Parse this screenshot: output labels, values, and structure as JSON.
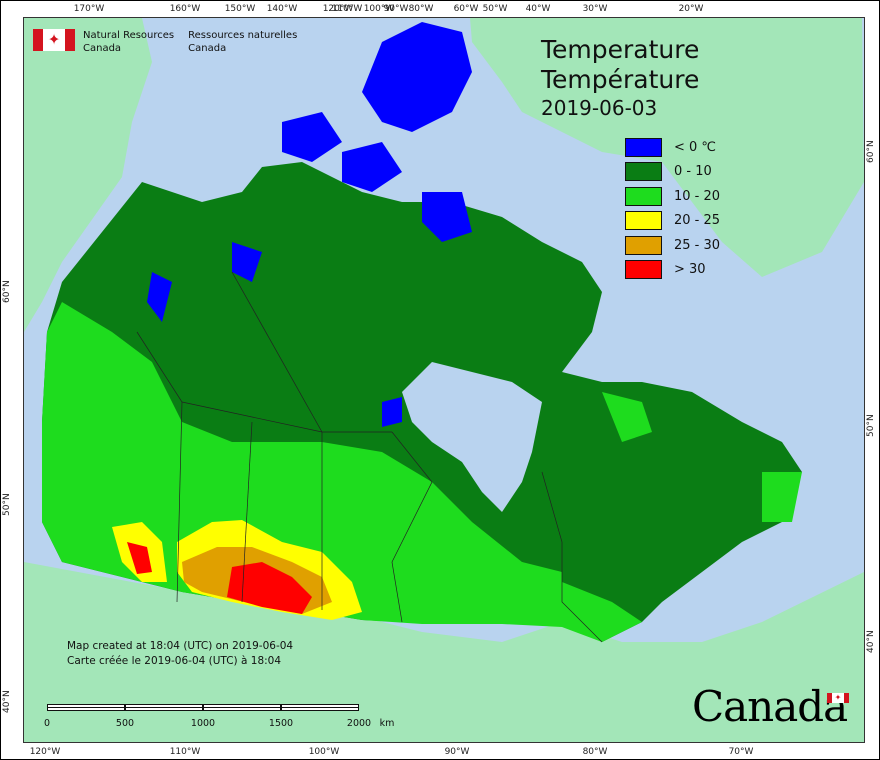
{
  "map": {
    "agency": {
      "en_line1": "Natural Resources",
      "en_line2": "Canada",
      "fr_line1": "Ressources naturelles",
      "fr_line2": "Canada"
    },
    "title_en": "Temperature",
    "title_fr": "Température",
    "date": "2019-06-03",
    "legend": [
      {
        "label": "< 0 ℃",
        "color": "#0000ff"
      },
      {
        "label": "0 - 10",
        "color": "#0a7d14"
      },
      {
        "label": "10 - 20",
        "color": "#1edc1e"
      },
      {
        "label": "20 - 25",
        "color": "#ffff00"
      },
      {
        "label": "25 - 30",
        "color": "#e0a000"
      },
      {
        "label": "> 30",
        "color": "#ff0000"
      }
    ],
    "credit_en": "Map created at 18:04 (UTC) on 2019-06-04",
    "credit_fr": "Carte créée le 2019-06-04 (UTC) à 18:04",
    "scale": {
      "labels": [
        "0",
        "500",
        "1000",
        "1500",
        "2000"
      ],
      "unit": "km"
    },
    "wordmark": "Canada",
    "lon_top": [
      "170°W",
      "160°W",
      "150°W",
      "140°W",
      "120°W",
      "110°W",
      "100°W",
      "90°W",
      "80°W",
      "60°W",
      "50°W",
      "40°W",
      "30°W",
      "20°W"
    ],
    "lon_bottom": [
      "120°W",
      "110°W",
      "100°W",
      "90°W",
      "80°W",
      "70°W"
    ],
    "lat_left": [
      "60°N",
      "50°N",
      "40°N"
    ],
    "lat_right": [
      "60°N",
      "50°N",
      "40°N"
    ],
    "colors": {
      "ocean": "#b9d3ef",
      "foreign_land": "#a3e6b8",
      "greenland": "#a3e6b8"
    }
  }
}
